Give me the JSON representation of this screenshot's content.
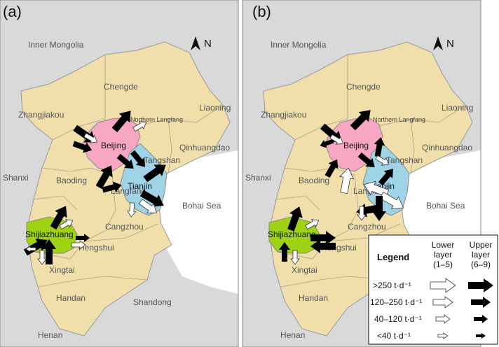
{
  "panels": [
    {
      "label": "(a)",
      "map": {
        "regions": [
          "Inner Mongolia",
          "Chengde",
          "Zhangjiakou",
          "Liaoning",
          "Northern Langfang",
          "Qinhuangdao",
          "Tangshan",
          "Shanxi",
          "Baoding",
          "Langfang",
          "Bohai Sea",
          "Cangzhou",
          "Hengshui",
          "Xingtai",
          "Handan",
          "Shandong",
          "Henan"
        ],
        "cities": [
          "Beijing",
          "Tianjin",
          "Shijiazhuang"
        ]
      }
    },
    {
      "label": "(b)",
      "map": {
        "regions": [
          "Inner Mongolia",
          "Chengde",
          "Zhangjiakou",
          "Liaoning",
          "Northern Langfang",
          "Qinhuangdao",
          "Tangshan",
          "Shanxi",
          "Baoding",
          "Langfang",
          "Bohai Sea",
          "Cangzhou",
          "Hengshui",
          "Xingtai",
          "Handan",
          "Henan"
        ],
        "cities": [
          "Beijing",
          "Tianjin",
          "Shijiazhuang"
        ]
      }
    }
  ],
  "north_label": "N",
  "colors": {
    "hebei": "#f0deab",
    "beijing": "#f7a6c4",
    "tianjin": "#9fd3e6",
    "shijiazhuang": "#9ed214",
    "outside": "#d9d9d9",
    "sea": "#ffffff"
  },
  "legend": {
    "title": "Legend",
    "lower_header": [
      "Lower",
      "layer",
      "(1–5)"
    ],
    "upper_header": [
      "Upper",
      "layer",
      "(6–9)"
    ],
    "rows": [
      ">250 t·d⁻¹",
      "120–250 t·d⁻¹",
      "40–120 t·d⁻¹",
      "<40 t·d⁻¹"
    ]
  }
}
